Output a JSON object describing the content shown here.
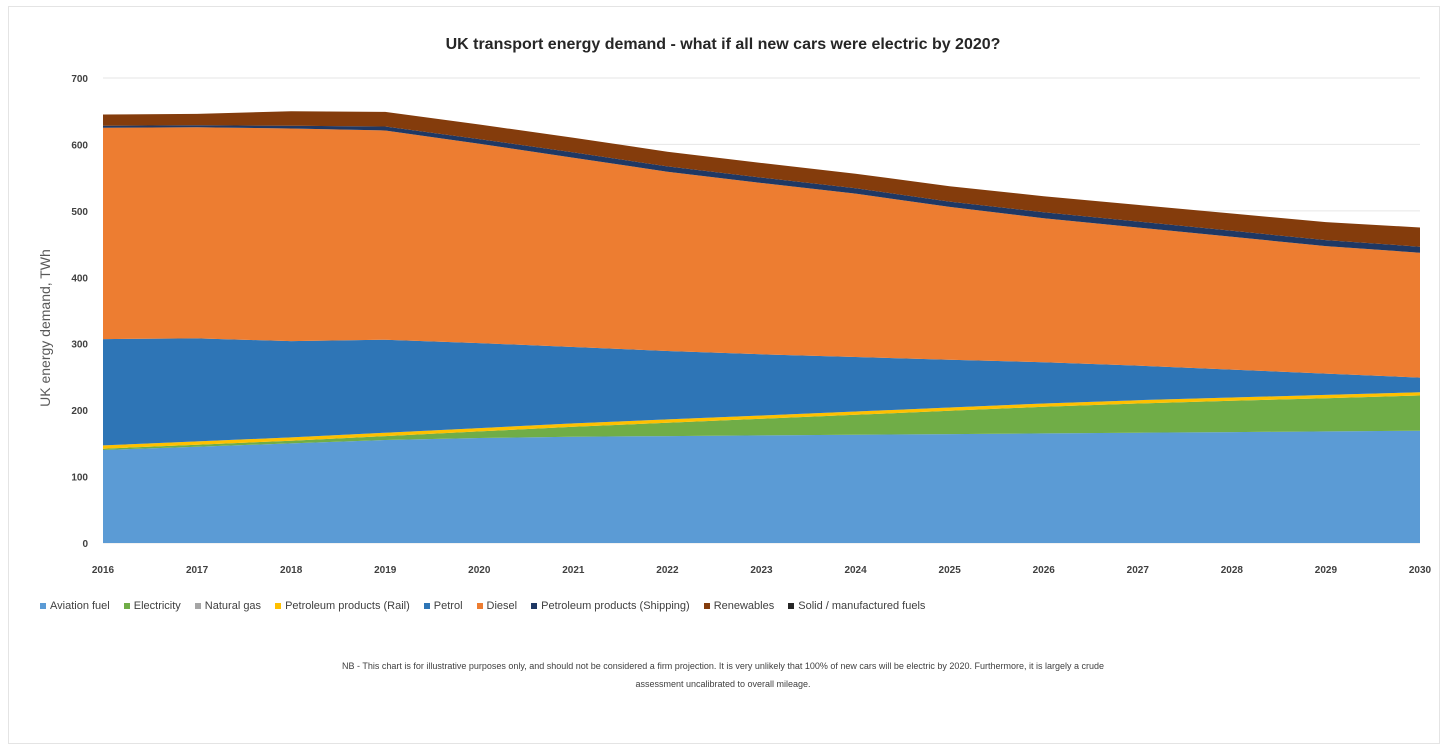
{
  "chart_data": {
    "type": "area",
    "stacked": true,
    "title": "UK transport energy demand - what if all new cars were electric by 2020?",
    "ylabel": "UK energy demand, TWh",
    "xlabel": "",
    "ylim": [
      0,
      700
    ],
    "yticks": [
      0,
      100,
      200,
      300,
      400,
      500,
      600,
      700
    ],
    "x": [
      "2016",
      "2017",
      "2018",
      "2019",
      "2020",
      "2021",
      "2022",
      "2023",
      "2024",
      "2025",
      "2026",
      "2027",
      "2028",
      "2029",
      "2030"
    ],
    "legend_position": "bottom",
    "grid": true,
    "series": [
      {
        "name": "Aviation fuel",
        "color": "#5b9bd5",
        "values": [
          140,
          145,
          150,
          155,
          158,
          160,
          161,
          162,
          163,
          164,
          165,
          166,
          167,
          168,
          169
        ]
      },
      {
        "name": "Electricity",
        "color": "#70ad47",
        "values": [
          2,
          3,
          4,
          6,
          10,
          15,
          20,
          25,
          30,
          35,
          40,
          44,
          47,
          50,
          53
        ]
      },
      {
        "name": "Natural gas",
        "color": "#a5a5a5",
        "values": [
          0,
          0,
          0,
          0,
          0,
          0,
          0,
          0,
          0,
          0,
          0,
          0,
          0,
          0,
          0
        ]
      },
      {
        "name": "Petroleum products (Rail)",
        "color": "#ffc000",
        "values": [
          5,
          5,
          5,
          5,
          5,
          5,
          5,
          5,
          5,
          5,
          5,
          5,
          5,
          5,
          5
        ]
      },
      {
        "name": "Petrol",
        "color": "#2e75b6",
        "values": [
          160,
          155,
          145,
          140,
          128,
          115,
          103,
          92,
          82,
          72,
          62,
          52,
          42,
          32,
          22
        ]
      },
      {
        "name": "Diesel",
        "color": "#ed7d31",
        "values": [
          318,
          318,
          320,
          315,
          300,
          285,
          270,
          258,
          246,
          230,
          217,
          208,
          200,
          192,
          188
        ]
      },
      {
        "name": "Petroleum products (Shipping)",
        "color": "#1f3864",
        "values": [
          3,
          3,
          4,
          6,
          7,
          8,
          8,
          8,
          8,
          8,
          9,
          9,
          9,
          9,
          9
        ]
      },
      {
        "name": "Renewables",
        "color": "#843c0c",
        "values": [
          17,
          17,
          22,
          22,
          22,
          22,
          22,
          22,
          22,
          23,
          24,
          25,
          26,
          27,
          29
        ]
      },
      {
        "name": "Solid / manufactured fuels",
        "color": "#262626",
        "values": [
          0,
          0,
          0,
          0,
          0,
          0,
          0,
          0,
          0,
          0,
          0,
          0,
          0,
          0,
          0
        ]
      }
    ],
    "note": "NB - This chart is for illustrative purposes only, and should not be considered a firm projection. It is very unlikely that 100% of new cars will be electric by 2020. Furthermore, it is largely a crude assessment uncalibrated to overall mileage."
  }
}
